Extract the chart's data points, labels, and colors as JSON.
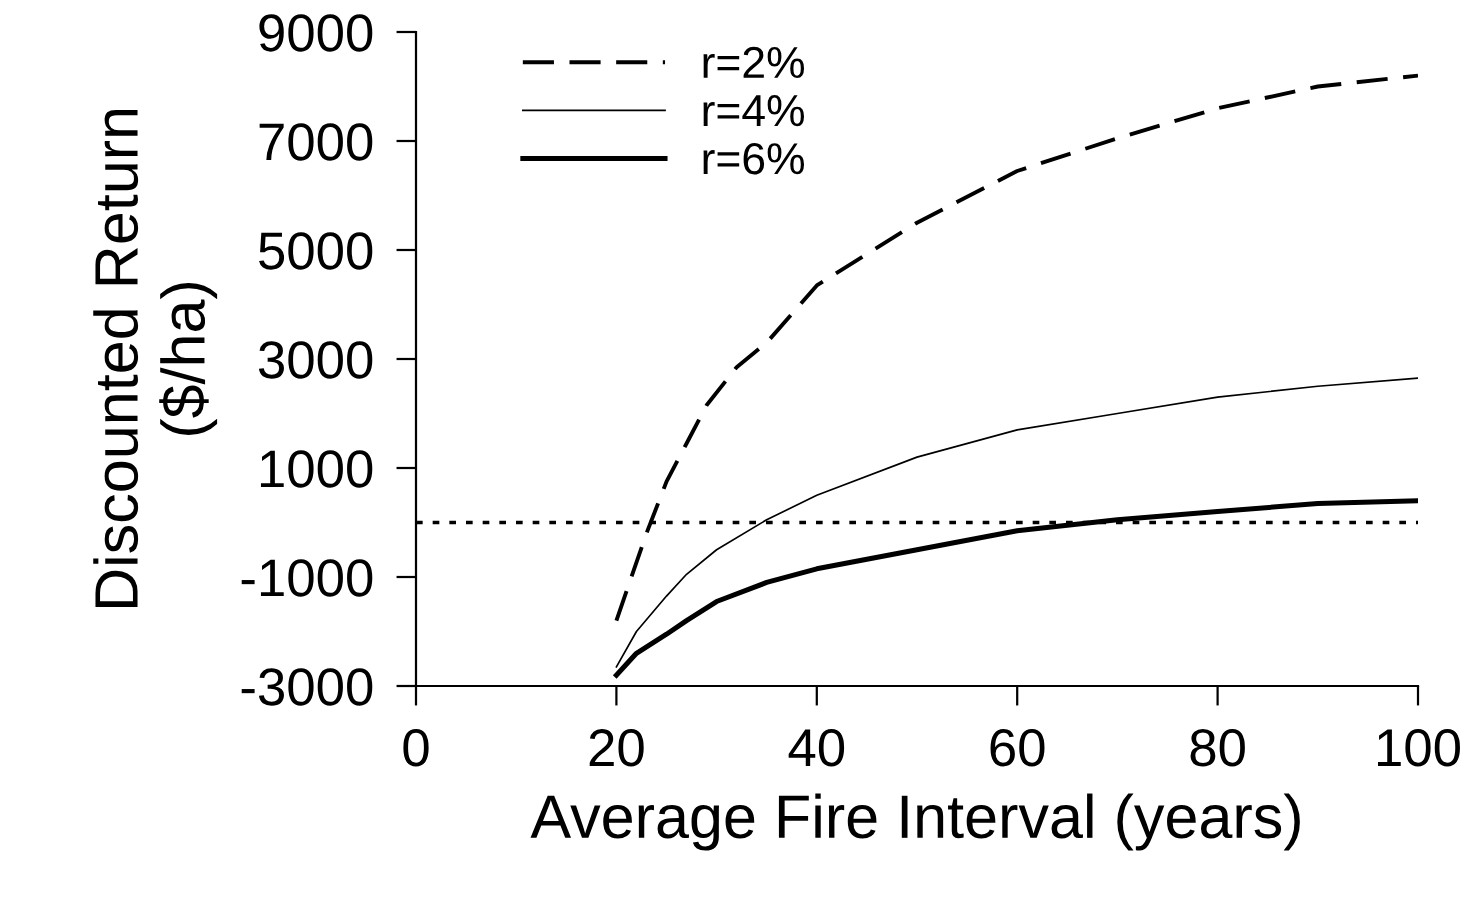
{
  "chart_data": {
    "type": "line",
    "xlabel": "Average Fire Interval (years)",
    "ylabel": "Discounted Return\n($/ha)",
    "xlim": [
      0,
      100
    ],
    "xticks": [
      0,
      20,
      40,
      60,
      80,
      100
    ],
    "ylim": [
      -3000,
      9000
    ],
    "yticks": [
      -3000,
      -1000,
      1000,
      3000,
      5000,
      7000,
      9000
    ],
    "grid": false,
    "legend": "top left",
    "series": [
      {
        "name": "r=2%",
        "color": "#000000",
        "line_style": "dashed",
        "x": [
          20,
          23,
          25,
          27,
          29,
          32,
          35,
          40,
          50,
          60,
          70,
          80,
          90,
          100
        ],
        "values": [
          -1800,
          -200,
          750,
          1450,
          2150,
          2850,
          3300,
          4350,
          5500,
          6450,
          7050,
          7600,
          8000,
          8200
        ]
      },
      {
        "name": "r=4%",
        "color": "#000000",
        "line_style": "solid",
        "x": [
          20,
          22,
          25,
          27,
          30,
          35,
          40,
          50,
          60,
          70,
          80,
          90,
          100
        ],
        "values": [
          -2650,
          -2000,
          -1350,
          -950,
          -500,
          50,
          500,
          1200,
          1700,
          2000,
          2300,
          2500,
          2650
        ]
      },
      {
        "name": "r=6%",
        "color": "#000000",
        "line_style": "solid",
        "x": [
          20,
          22,
          25,
          27,
          30,
          35,
          40,
          50,
          60,
          70,
          80,
          90,
          100
        ],
        "values": [
          -2800,
          -2400,
          -2050,
          -1800,
          -1450,
          -1100,
          -850,
          -500,
          -150,
          50,
          200,
          350,
          400
        ]
      }
    ],
    "ref_lines": [
      {
        "axis": "y",
        "value": 0,
        "line_style": "dotted",
        "color": "#000000"
      }
    ]
  }
}
